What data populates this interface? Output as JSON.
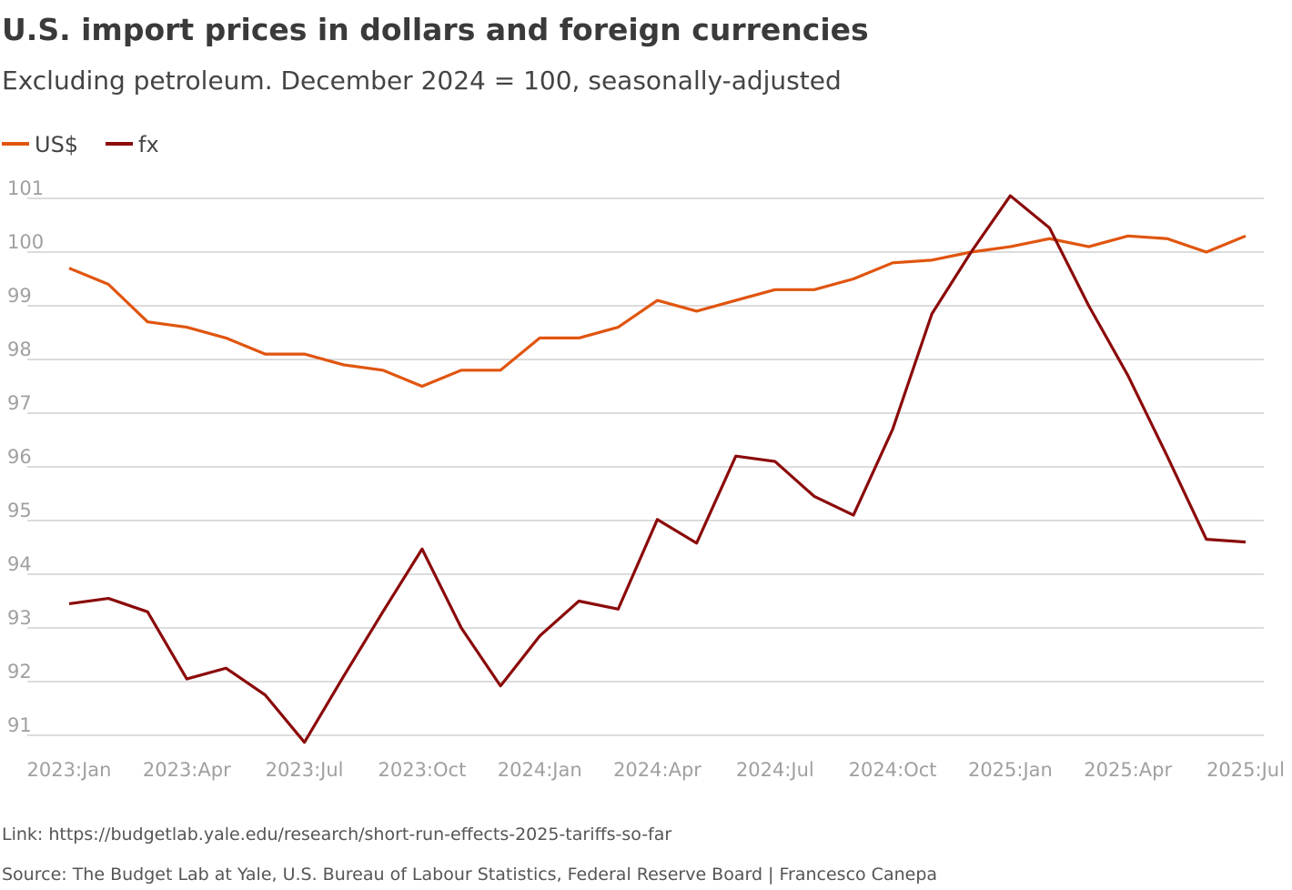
{
  "chart_data": {
    "type": "line",
    "title": "U.S. import prices in dollars and foreign currencies",
    "subtitle": "Excluding petroleum. December 2024 = 100, seasonally-adjusted",
    "xlabel": "",
    "ylabel": "",
    "ylim": [
      91,
      101
    ],
    "yticks": [
      "91",
      "92",
      "93",
      "94",
      "95",
      "96",
      "97",
      "98",
      "99",
      "100",
      "101"
    ],
    "xtick_labels": [
      "2023:Jan",
      "2023:Apr",
      "2023:Jul",
      "2023:Oct",
      "2024:Jan",
      "2024:Apr",
      "2024:Jul",
      "2024:Oct",
      "2025:Jan",
      "2025:Apr",
      "2025:Jul"
    ],
    "x": [
      "2023:Jan",
      "2023:Feb",
      "2023:Mar",
      "2023:Apr",
      "2023:May",
      "2023:Jun",
      "2023:Jul",
      "2023:Aug",
      "2023:Sep",
      "2023:Oct",
      "2023:Nov",
      "2023:Dec",
      "2024:Jan",
      "2024:Feb",
      "2024:Mar",
      "2024:Apr",
      "2024:May",
      "2024:Jun",
      "2024:Jul",
      "2024:Aug",
      "2024:Sep",
      "2024:Oct",
      "2024:Nov",
      "2024:Dec",
      "2025:Jan",
      "2025:Feb",
      "2025:Mar",
      "2025:Apr",
      "2025:May",
      "2025:Jun",
      "2025:Jul"
    ],
    "grid": true,
    "legend_position": "top-left",
    "series": [
      {
        "name": "US$",
        "color": "#e0550f",
        "values": [
          99.7,
          99.4,
          98.7,
          98.6,
          98.4,
          98.1,
          98.1,
          97.9,
          97.8,
          97.5,
          97.8,
          97.8,
          98.4,
          98.4,
          98.6,
          99.1,
          98.9,
          99.1,
          99.3,
          99.3,
          99.5,
          99.8,
          99.85,
          100.0,
          100.1,
          100.25,
          100.1,
          100.3,
          100.25,
          100.0,
          100.3
        ]
      },
      {
        "name": "fx",
        "color": "#8b0a0a",
        "values": [
          93.45,
          93.55,
          93.3,
          92.05,
          92.25,
          91.75,
          90.87,
          92.1,
          93.3,
          94.47,
          93.0,
          91.92,
          92.85,
          93.5,
          93.35,
          95.02,
          94.58,
          96.2,
          96.1,
          95.45,
          95.1,
          96.7,
          98.85,
          100.0,
          101.05,
          100.45,
          99.0,
          97.7,
          96.2,
          94.65,
          94.6
        ]
      }
    ]
  },
  "footer": {
    "link": "Link: https://budgetlab.yale.edu/research/short-run-effects-2025-tariffs-so-far",
    "source": "Source: The Budget Lab at Yale, U.S. Bureau of Labour Statistics, Federal Reserve Board  | Francesco Canepa"
  }
}
